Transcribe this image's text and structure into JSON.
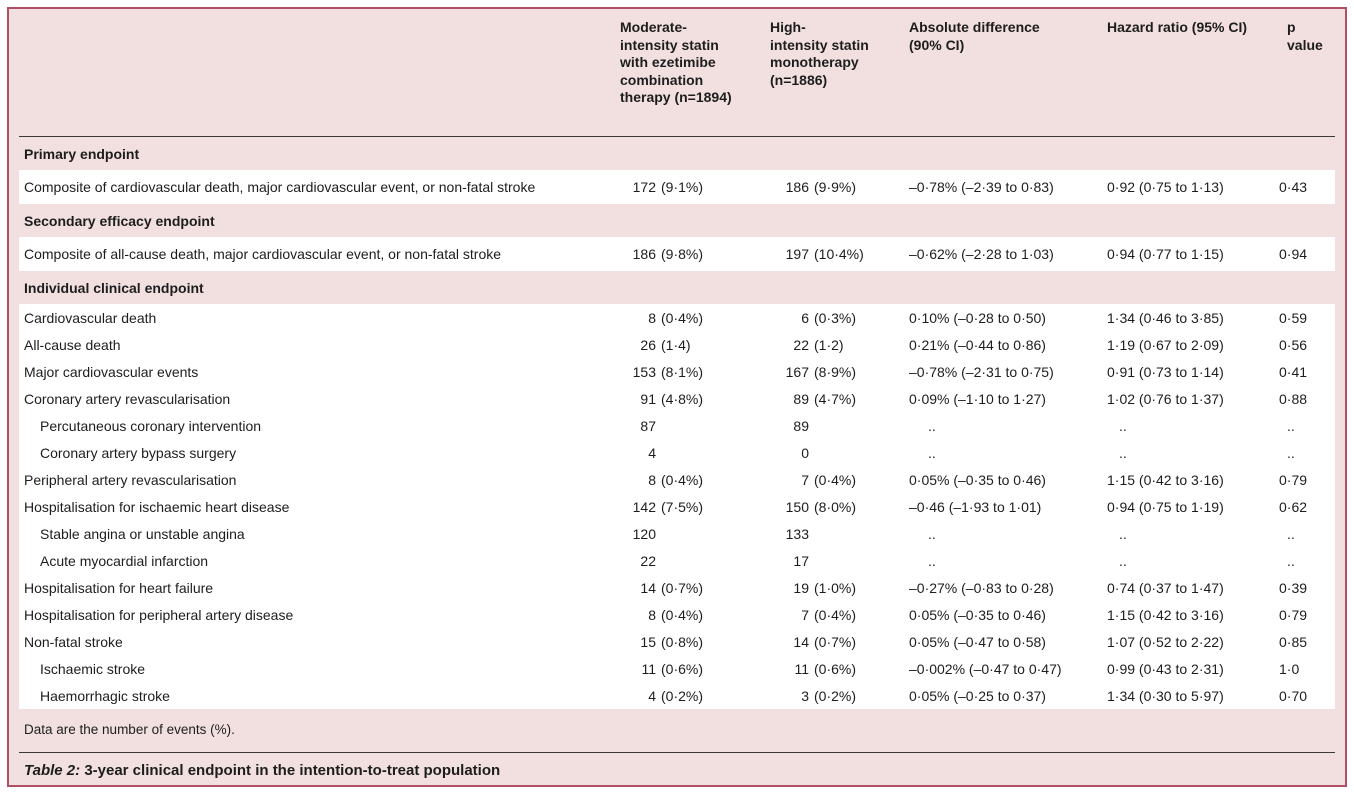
{
  "colors": {
    "border": "#b04e63",
    "panel_bg": "#f2e0e0",
    "row_bg": "#ffffff",
    "rule": "#3a3a3a",
    "ink": "#1d1d1d"
  },
  "table": {
    "columns": [
      {
        "lines": [
          "Moderate-",
          "intensity statin",
          "with ezetimibe",
          "combination",
          "therapy (n=1894)"
        ]
      },
      {
        "lines": [
          "High-",
          "intensity statin",
          "monotherapy",
          "(n=1886)"
        ]
      },
      {
        "lines": [
          "Absolute difference",
          "(90% CI)"
        ]
      },
      {
        "lines": [
          "Hazard ratio (95% CI)"
        ]
      },
      {
        "lines": [
          "p value"
        ]
      }
    ],
    "rows": [
      {
        "kind": "section",
        "label": "Primary endpoint"
      },
      {
        "kind": "row",
        "tall": true,
        "indent": false,
        "label": "Composite of cardiovascular death, major cardiovascular event, or non-fatal stroke",
        "cells": [
          "172 (9·1%)",
          "186 (9·9%)",
          "–0·78% (–2·39 to 0·83)",
          "0·92 (0·75 to 1·13)",
          "0·43"
        ]
      },
      {
        "kind": "section",
        "label": "Secondary efficacy endpoint"
      },
      {
        "kind": "row",
        "tall": true,
        "indent": false,
        "label": "Composite of all-cause death, major cardiovascular event, or non-fatal stroke",
        "cells": [
          "186 (9·8%)",
          "197 (10·4%)",
          "–0·62% (–2·28 to 1·03)",
          "0·94 (0·77 to 1·15)",
          "0·94"
        ]
      },
      {
        "kind": "section",
        "label": "Individual clinical endpoint"
      },
      {
        "kind": "row",
        "indent": false,
        "label": "Cardiovascular death",
        "cells": [
          "8 (0·4%)",
          "6 (0·3%)",
          "0·10% (–0·28 to 0·50)",
          "1·34 (0·46 to 3·85)",
          "0·59"
        ]
      },
      {
        "kind": "row",
        "indent": false,
        "label": "All-cause death",
        "cells": [
          "26 (1·4)",
          "22 (1·2)",
          "0·21% (–0·44 to 0·86)",
          "1·19 (0·67 to 2·09)",
          "0·56"
        ]
      },
      {
        "kind": "row",
        "indent": false,
        "label": "Major cardiovascular events",
        "cells": [
          "153 (8·1%)",
          "167 (8·9%)",
          "–0·78% (–2·31 to 0·75)",
          "0·91 (0·73 to 1·14)",
          "0·41"
        ]
      },
      {
        "kind": "row",
        "indent": false,
        "label": "Coronary artery revascularisation",
        "cells": [
          "91 (4·8%)",
          "89 (4·7%)",
          "0·09% (–1·10 to 1·27)",
          "1·02 (0·76 to 1·37)",
          "0·88"
        ]
      },
      {
        "kind": "row",
        "indent": true,
        "label": "Percutaneous coronary intervention",
        "cells": [
          "87",
          "89",
          "..",
          "..",
          ".."
        ]
      },
      {
        "kind": "row",
        "indent": true,
        "label": "Coronary artery bypass surgery",
        "cells": [
          "4",
          "0",
          "..",
          "..",
          ".."
        ]
      },
      {
        "kind": "row",
        "indent": false,
        "label": "Peripheral artery revascularisation",
        "cells": [
          "8 (0·4%)",
          "7 (0·4%)",
          "0·05% (–0·35 to 0·46)",
          "1·15 (0·42 to 3·16)",
          "0·79"
        ]
      },
      {
        "kind": "row",
        "indent": false,
        "label": "Hospitalisation for ischaemic heart disease",
        "cells": [
          "142 (7·5%)",
          "150 (8·0%)",
          "–0·46 (–1·93 to 1·01)",
          "0·94 (0·75 to 1·19)",
          "0·62"
        ]
      },
      {
        "kind": "row",
        "indent": true,
        "label": "Stable angina or unstable angina",
        "cells": [
          "120",
          "133",
          "..",
          "..",
          ".."
        ]
      },
      {
        "kind": "row",
        "indent": true,
        "label": "Acute myocardial infarction",
        "cells": [
          "22",
          "17",
          "..",
          "..",
          ".."
        ]
      },
      {
        "kind": "row",
        "indent": false,
        "label": "Hospitalisation for heart failure",
        "cells": [
          "14 (0·7%)",
          "19 (1·0%)",
          "–0·27% (–0·83 to 0·28)",
          "0·74 (0·37 to 1·47)",
          "0·39"
        ]
      },
      {
        "kind": "row",
        "indent": false,
        "label": "Hospitalisation for peripheral artery disease",
        "cells": [
          "8 (0·4%)",
          "7 (0·4%)",
          "0·05% (–0·35 to 0·46)",
          "1·15 (0·42 to 3·16)",
          "0·79"
        ]
      },
      {
        "kind": "row",
        "indent": false,
        "label": "Non-fatal stroke",
        "cells": [
          "15 (0·8%)",
          "14 (0·7%)",
          "0·05% (–0·47 to 0·58)",
          "1·07 (0·52 to 2·22)",
          "0·85"
        ]
      },
      {
        "kind": "row",
        "indent": true,
        "label": "Ischaemic stroke",
        "cells": [
          "11 (0·6%)",
          "11 (0·6%)",
          "–0·002% (–0·47 to 0·47)",
          "0·99 (0·43 to 2·31)",
          "1·0"
        ]
      },
      {
        "kind": "row",
        "indent": true,
        "label": "Haemorrhagic stroke",
        "cells": [
          "4 (0·2%)",
          "3 (0·2%)",
          "0·05% (–0·25 to 0·37)",
          "1·34 (0·30 to 5·97)",
          "0·70"
        ]
      }
    ]
  },
  "footnote": "Data are the number of events (%).",
  "caption": {
    "prefix": "Table 2:",
    "text": "3-year clinical endpoint in the intention-to-treat population"
  }
}
